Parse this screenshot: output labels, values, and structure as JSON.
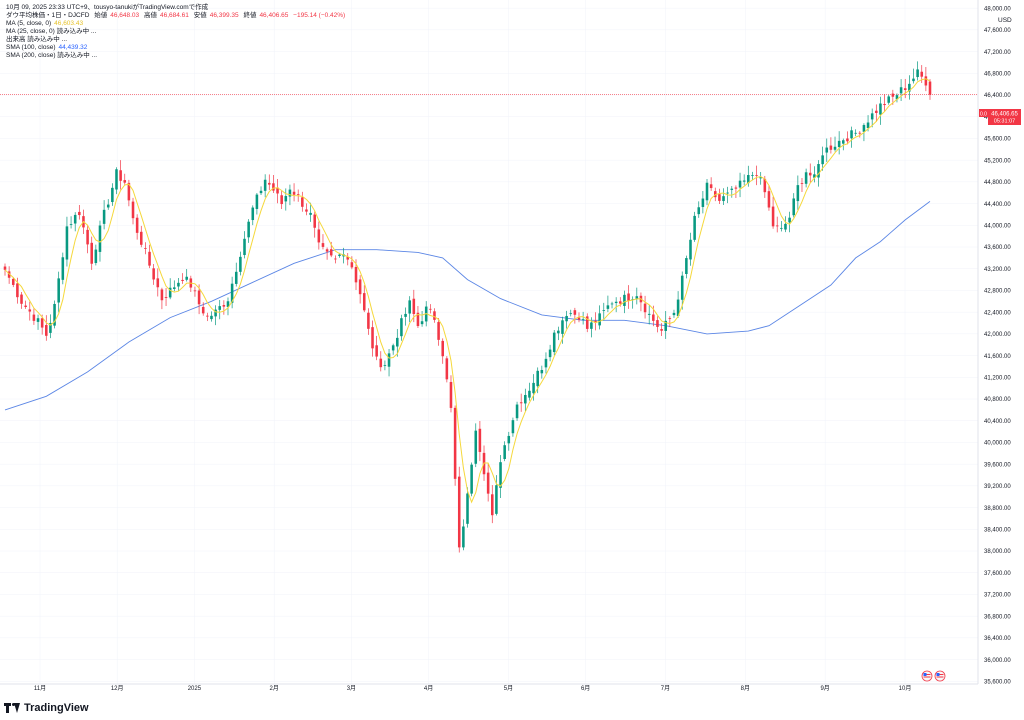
{
  "header": {
    "timestamp": "10月 09, 2025 23:33 UTC+9、tousyo-tanukiがTradingView.comで作成",
    "symbol": "ダウ平均株価・1日・DJCFD",
    "open_label": "始値",
    "open_value": "46,648.03",
    "high_label": "高値",
    "high_value": "46,684.61",
    "low_label": "安値",
    "low_value": "46,399.35",
    "close_label": "終値",
    "close_value": "46,406.65",
    "change": "−195.14 (−0.42%)",
    "indicators": [
      {
        "label": "MA (5, close, 0)",
        "value": "46,603.43",
        "color": "#e6c229"
      },
      {
        "label": "MA (25, close, 0) 読み込み中 ...",
        "value": "",
        "color": "#131722"
      },
      {
        "label": "出来高 読み込み中 ...",
        "value": "",
        "color": "#131722"
      },
      {
        "label": "SMA (100, close)",
        "value": "44,439.32",
        "color": "#2962ff"
      },
      {
        "label": "SMA (200, close) 読み込み中 ...",
        "value": "",
        "color": "#131722"
      }
    ]
  },
  "price_tag": {
    "value": "46,406.65",
    "countdown": "05:31:07",
    "prefix": "0.0"
  },
  "currency": "USD",
  "logo_text": "TradingView",
  "colors": {
    "up": "#089981",
    "down": "#f23645",
    "ma5": "#f5d83b",
    "sma100": "#5b86e5",
    "price_line": "#f23645"
  },
  "chart_data": {
    "type": "candlestick",
    "yaxis": {
      "ticks": [
        "48,000.00",
        "47,600.00",
        "47,200.00",
        "46,800.00",
        "46,400.00",
        "46,000.00",
        "45,600.00",
        "45,200.00",
        "44,800.00",
        "44,400.00",
        "44,000.00",
        "43,600.00",
        "43,200.00",
        "42,800.00",
        "42,400.00",
        "42,000.00",
        "41,600.00",
        "41,200.00",
        "40,800.00",
        "40,400.00",
        "40,000.00",
        "39,600.00",
        "39,200.00",
        "38,800.00",
        "38,400.00",
        "38,000.00",
        "37,600.00",
        "37,200.00",
        "36,800.00",
        "36,400.00",
        "36,000.00",
        "35,600.00"
      ],
      "range": [
        35550,
        48150
      ]
    },
    "xaxis": {
      "ticks": [
        "11月",
        "12月",
        "2025",
        "2月",
        "3月",
        "4月",
        "5月",
        "6月",
        "7月",
        "8月",
        "9月",
        "10月"
      ]
    },
    "anchors": [
      [
        0,
        43180
      ],
      [
        4,
        42600
      ],
      [
        8,
        42220
      ],
      [
        10,
        41980
      ],
      [
        12,
        42500
      ],
      [
        15,
        43980
      ],
      [
        18,
        44250
      ],
      [
        21,
        43350
      ],
      [
        24,
        44200
      ],
      [
        27,
        44950
      ],
      [
        29,
        44800
      ],
      [
        31,
        44100
      ],
      [
        33,
        43700
      ],
      [
        36,
        43050
      ],
      [
        38,
        42650
      ],
      [
        40,
        42800
      ],
      [
        43,
        43050
      ],
      [
        45,
        42900
      ],
      [
        47,
        42550
      ],
      [
        49,
        42300
      ],
      [
        51,
        42400
      ],
      [
        54,
        42650
      ],
      [
        57,
        43500
      ],
      [
        60,
        44300
      ],
      [
        63,
        44850
      ],
      [
        65,
        44650
      ],
      [
        67,
        44400
      ],
      [
        69,
        44700
      ],
      [
        71,
        44520
      ],
      [
        74,
        44180
      ],
      [
        76,
        43600
      ],
      [
        78,
        43450
      ],
      [
        80,
        43350
      ],
      [
        82,
        43550
      ],
      [
        84,
        43250
      ],
      [
        86,
        42750
      ],
      [
        88,
        42050
      ],
      [
        90,
        41500
      ],
      [
        92,
        41450
      ],
      [
        94,
        41800
      ],
      [
        96,
        42200
      ],
      [
        98,
        42550
      ],
      [
        100,
        42150
      ],
      [
        102,
        42450
      ],
      [
        104,
        42300
      ],
      [
        106,
        41650
      ],
      [
        108,
        40600
      ],
      [
        110,
        38000
      ],
      [
        112,
        39000
      ],
      [
        114,
        40300
      ],
      [
        116,
        39500
      ],
      [
        118,
        38600
      ],
      [
        120,
        39700
      ],
      [
        122,
        40200
      ],
      [
        124,
        40700
      ],
      [
        127,
        41000
      ],
      [
        130,
        41400
      ],
      [
        133,
        42000
      ],
      [
        136,
        42400
      ],
      [
        139,
        42350
      ],
      [
        141,
        42100
      ],
      [
        144,
        42300
      ],
      [
        147,
        42600
      ],
      [
        150,
        42650
      ],
      [
        153,
        42750
      ],
      [
        156,
        42350
      ],
      [
        159,
        42050
      ],
      [
        162,
        42400
      ],
      [
        164,
        43000
      ],
      [
        167,
        44100
      ],
      [
        170,
        44700
      ],
      [
        173,
        44450
      ],
      [
        176,
        44600
      ],
      [
        179,
        44800
      ],
      [
        182,
        45000
      ],
      [
        184,
        44600
      ],
      [
        186,
        44000
      ],
      [
        188,
        43900
      ],
      [
        190,
        44150
      ],
      [
        192,
        44700
      ],
      [
        194,
        45000
      ],
      [
        196,
        44850
      ],
      [
        198,
        45350
      ],
      [
        200,
        45450
      ],
      [
        203,
        45600
      ],
      [
        206,
        45700
      ],
      [
        209,
        45950
      ],
      [
        212,
        46200
      ],
      [
        215,
        46350
      ],
      [
        218,
        46550
      ],
      [
        221,
        46800
      ],
      [
        223,
        46650
      ],
      [
        224,
        46406.65
      ]
    ],
    "series": [
      {
        "name": "MA (5, close, 0)",
        "type": "line"
      },
      {
        "name": "SMA (100, close)",
        "type": "line",
        "points": [
          [
            0,
            40600
          ],
          [
            10,
            40850
          ],
          [
            20,
            41300
          ],
          [
            30,
            41850
          ],
          [
            40,
            42300
          ],
          [
            50,
            42600
          ],
          [
            60,
            42950
          ],
          [
            70,
            43300
          ],
          [
            80,
            43550
          ],
          [
            90,
            43550
          ],
          [
            100,
            43500
          ],
          [
            106,
            43400
          ],
          [
            112,
            43000
          ],
          [
            120,
            42650
          ],
          [
            130,
            42350
          ],
          [
            140,
            42250
          ],
          [
            150,
            42250
          ],
          [
            160,
            42150
          ],
          [
            170,
            42000
          ],
          [
            180,
            42050
          ],
          [
            185,
            42150
          ],
          [
            192,
            42500
          ],
          [
            200,
            42900
          ],
          [
            206,
            43400
          ],
          [
            212,
            43700
          ],
          [
            218,
            44100
          ],
          [
            224,
            44439.32
          ]
        ]
      }
    ]
  }
}
